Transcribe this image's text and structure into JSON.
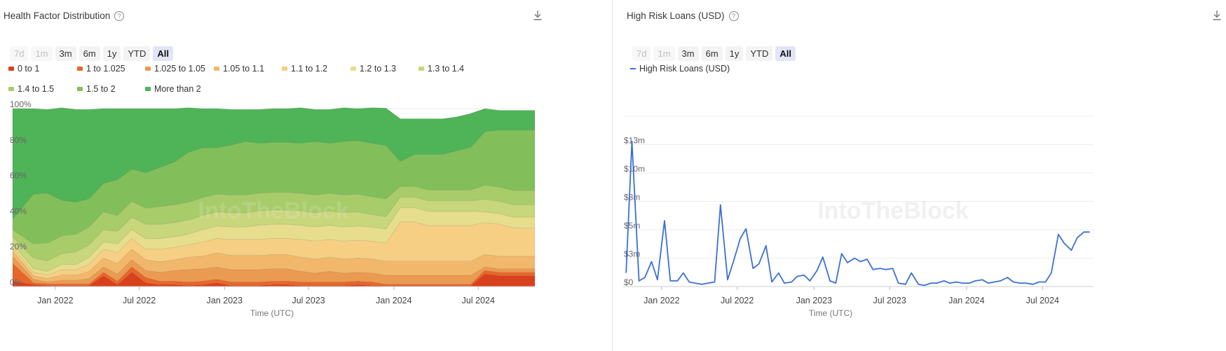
{
  "left_panel": {
    "title": "Health Factor Distribution",
    "help_icon": "question-circle-icon",
    "download_icon": "download-icon",
    "ranges": [
      {
        "label": "7d",
        "state": "disabled"
      },
      {
        "label": "1m",
        "state": "disabled"
      },
      {
        "label": "3m",
        "state": "normal"
      },
      {
        "label": "6m",
        "state": "normal"
      },
      {
        "label": "1y",
        "state": "normal"
      },
      {
        "label": "YTD",
        "state": "normal"
      },
      {
        "label": "All",
        "state": "active"
      }
    ],
    "x_axis_title": "Time (UTC)",
    "watermark": "IntoTheBlock"
  },
  "right_panel": {
    "title": "High Risk Loans (USD)",
    "help_icon": "question-circle-icon",
    "download_icon": "download-icon",
    "ranges": [
      {
        "label": "7d",
        "state": "disabled"
      },
      {
        "label": "1m",
        "state": "disabled"
      },
      {
        "label": "3m",
        "state": "normal"
      },
      {
        "label": "6m",
        "state": "normal"
      },
      {
        "label": "1y",
        "state": "normal"
      },
      {
        "label": "YTD",
        "state": "normal"
      },
      {
        "label": "All",
        "state": "active"
      }
    ],
    "x_axis_title": "Time (UTC)",
    "watermark": "IntoTheBlock"
  },
  "chart_data": [
    {
      "type": "area",
      "stacked": true,
      "normalized": true,
      "x_start": "2021-10-01",
      "x_end": "2024-10-31",
      "x_ticks": [
        "Jan 2022",
        "Jul 2022",
        "Jan 2023",
        "Jul 2023",
        "Jan 2024",
        "Jul 2024"
      ],
      "y_ticks": [
        "0%",
        "20%",
        "40%",
        "60%",
        "80%",
        "100%"
      ],
      "ylim": [
        0,
        100
      ],
      "xlabel": "Time (UTC)",
      "legend_position": "top",
      "dates": [
        "2021-10",
        "2021-11",
        "2021-12",
        "2022-01",
        "2022-02",
        "2022-03",
        "2022-04",
        "2022-05",
        "2022-06",
        "2022-07",
        "2022-08",
        "2022-09",
        "2022-10",
        "2022-11",
        "2022-12",
        "2023-01",
        "2023-02",
        "2023-03",
        "2023-04",
        "2023-05",
        "2023-06",
        "2023-07",
        "2023-08",
        "2023-09",
        "2023-10",
        "2023-11",
        "2023-12",
        "2024-01",
        "2024-02",
        "2024-03",
        "2024-04",
        "2024-05",
        "2024-06",
        "2024-07",
        "2024-08",
        "2024-09",
        "2024-10"
      ],
      "series": [
        {
          "name": "0 to 1",
          "color": "#d9401d",
          "values": [
            3,
            1,
            0.5,
            0.5,
            0.5,
            0.5,
            6,
            1,
            8,
            2,
            1,
            1,
            0.5,
            1,
            2,
            0.5,
            0.5,
            0.5,
            1,
            1,
            0.5,
            0.5,
            0.5,
            0.5,
            1,
            0.5,
            0.3,
            0.3,
            0.3,
            0.3,
            0.3,
            0.3,
            0.3,
            7,
            6,
            6,
            6
          ]
        },
        {
          "name": "1 to 1.025",
          "color": "#e8662a",
          "values": [
            10,
            1,
            1,
            1,
            1,
            1,
            2,
            2,
            3,
            3,
            2,
            2,
            2,
            2,
            2,
            2,
            2,
            2,
            2,
            2,
            2,
            2,
            2,
            2,
            2,
            2,
            1,
            1,
            1,
            1,
            1,
            1,
            1,
            2,
            2,
            2,
            2
          ]
        },
        {
          "name": "1.025 to 1.05",
          "color": "#eb9a52",
          "values": [
            4,
            2,
            1,
            2,
            2,
            3,
            3,
            4,
            4,
            4,
            5,
            6,
            7,
            7,
            7,
            7,
            7,
            7,
            7,
            7,
            6,
            5,
            6,
            5,
            5,
            5,
            5,
            5,
            5,
            5,
            5,
            5,
            5,
            2,
            2,
            2,
            2
          ]
        },
        {
          "name": "1.05 to 1.1",
          "color": "#f1b86c",
          "values": [
            3,
            2,
            2,
            3,
            3,
            4,
            5,
            6,
            6,
            6,
            6,
            6,
            7,
            7,
            8,
            8,
            8,
            8,
            8,
            8,
            8,
            8,
            8,
            8,
            8,
            8,
            8,
            8,
            8,
            8,
            8,
            8,
            8,
            7,
            7,
            7,
            7
          ]
        },
        {
          "name": "1.1 to 1.2",
          "color": "#f6cf85",
          "values": [
            2,
            2,
            2,
            3,
            3,
            4,
            5,
            6,
            6,
            6,
            7,
            7,
            7,
            8,
            8,
            9,
            9,
            9,
            9,
            9,
            10,
            10,
            10,
            10,
            10,
            10,
            10,
            22,
            22,
            20,
            20,
            20,
            20,
            18,
            18,
            16,
            16
          ]
        },
        {
          "name": "1.2 to 1.3",
          "color": "#e6de8c",
          "values": [
            2,
            2,
            2,
            3,
            3,
            4,
            4,
            5,
            5,
            6,
            6,
            6,
            6,
            7,
            7,
            7,
            7,
            8,
            8,
            8,
            8,
            8,
            8,
            8,
            8,
            8,
            8,
            8,
            8,
            8,
            8,
            8,
            8,
            6,
            6,
            6,
            6
          ]
        },
        {
          "name": "1.3 to 1.4",
          "color": "#c8d67c",
          "values": [
            4,
            6,
            6,
            6,
            7,
            7,
            7,
            7,
            7,
            8,
            8,
            8,
            8,
            8,
            8,
            8,
            8,
            8,
            8,
            8,
            8,
            8,
            8,
            8,
            8,
            7,
            7,
            6,
            6,
            6,
            6,
            6,
            6,
            7,
            7,
            7,
            7
          ]
        },
        {
          "name": "1.4 to 1.5",
          "color": "#a8cc6a",
          "values": [
            4,
            8,
            10,
            10,
            10,
            10,
            10,
            9,
            9,
            9,
            10,
            10,
            10,
            10,
            10,
            10,
            10,
            10,
            10,
            10,
            10,
            10,
            10,
            10,
            10,
            10,
            10,
            6,
            6,
            6,
            6,
            6,
            6,
            8,
            8,
            8,
            8
          ]
        },
        {
          "name": "1.5 to 2",
          "color": "#82bf5b",
          "values": [
            6,
            28,
            28,
            20,
            18,
            16,
            16,
            20,
            18,
            20,
            22,
            24,
            28,
            28,
            26,
            28,
            30,
            28,
            28,
            28,
            28,
            30,
            28,
            30,
            30,
            30,
            30,
            14,
            18,
            20,
            20,
            22,
            24,
            30,
            32,
            34,
            34
          ]
        },
        {
          "name": "More than 2",
          "color": "#4fb357",
          "values": [
            62,
            48,
            47,
            52,
            52,
            50,
            42,
            40,
            34,
            36,
            33,
            30,
            25,
            22,
            22,
            20,
            18,
            19,
            19,
            19,
            20,
            18,
            19,
            19,
            18,
            20,
            21,
            24,
            20,
            20,
            20,
            19,
            19,
            13,
            11,
            11,
            11
          ]
        }
      ]
    },
    {
      "type": "line",
      "series": [
        {
          "name": "High Risk Loans (USD)",
          "color": "#3b6fd8",
          "dates": [
            "2021-10",
            "2021-10",
            "2021-11",
            "2021-11",
            "2021-12",
            "2021-12",
            "2022-01",
            "2022-01",
            "2022-02",
            "2022-02",
            "2022-03",
            "2022-03",
            "2022-04",
            "2022-04",
            "2022-05",
            "2022-05",
            "2022-06",
            "2022-06",
            "2022-07",
            "2022-07",
            "2022-08",
            "2022-08",
            "2022-09",
            "2022-09",
            "2022-10",
            "2022-10",
            "2022-11",
            "2022-11",
            "2022-12",
            "2022-12",
            "2023-01",
            "2023-01",
            "2023-02",
            "2023-02",
            "2023-03",
            "2023-03",
            "2023-04",
            "2023-04",
            "2023-05",
            "2023-05",
            "2023-06",
            "2023-06",
            "2023-07",
            "2023-07",
            "2023-08",
            "2023-08",
            "2023-09",
            "2023-09",
            "2023-10",
            "2023-10",
            "2023-11",
            "2023-11",
            "2023-12",
            "2023-12",
            "2024-01",
            "2024-01",
            "2024-02",
            "2024-02",
            "2024-03",
            "2024-03",
            "2024-04",
            "2024-04",
            "2024-05",
            "2024-05",
            "2024-06",
            "2024-06",
            "2024-07",
            "2024-07",
            "2024-08",
            "2024-08",
            "2024-09",
            "2024-09",
            "2024-10",
            "2024-10"
          ],
          "values": [
            1.2,
            12.8,
            0.5,
            0.8,
            2.2,
            0.6,
            5.8,
            0.5,
            0.5,
            1.2,
            0.4,
            0.3,
            0.2,
            0.3,
            0.4,
            7.2,
            0.6,
            2.2,
            4.2,
            5.1,
            1.6,
            2.0,
            3.6,
            0.4,
            1.2,
            0.3,
            0.4,
            0.9,
            1.0,
            0.5,
            1.4,
            2.6,
            0.5,
            0.3,
            2.9,
            2.1,
            2.5,
            2.2,
            2.4,
            1.5,
            1.6,
            1.5,
            1.6,
            0.3,
            0.2,
            1.2,
            0.2,
            0.1,
            0.3,
            0.3,
            0.5,
            0.3,
            0.4,
            0.3,
            0.3,
            0.5,
            0.6,
            0.3,
            0.4,
            0.5,
            0.8,
            0.4,
            0.3,
            0.3,
            0.2,
            0.4,
            0.4,
            1.2,
            4.6,
            3.8,
            3.2,
            4.3,
            4.8,
            4.8
          ]
        }
      ],
      "x_start": "2021-10-01",
      "x_end": "2024-10-31",
      "x_ticks": [
        "Jan 2022",
        "Jul 2022",
        "Jan 2023",
        "Jul 2023",
        "Jan 2024",
        "Jul 2024"
      ],
      "y_ticks": [
        "$0",
        "$3m",
        "$5m",
        "$8m",
        "$10m",
        "$13m"
      ],
      "y_tick_values": [
        0,
        2.5,
        5,
        7.5,
        10,
        12.5
      ],
      "ylim": [
        0,
        15
      ],
      "xlabel": "Time (UTC)",
      "legend_position": "top-left"
    }
  ]
}
